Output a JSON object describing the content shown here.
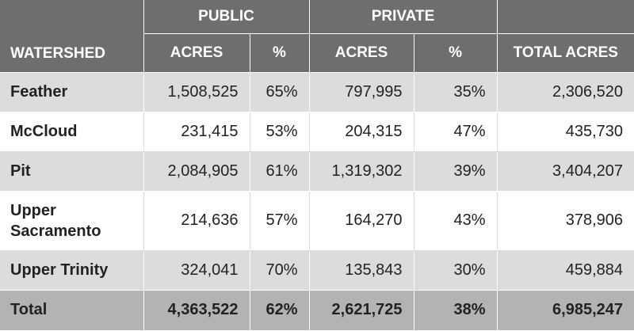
{
  "header": {
    "public_group": "PUBLIC",
    "private_group": "PRIVATE",
    "col_watershed": "WATERSHED",
    "col_public_acres": "ACRES",
    "col_public_pct": "%",
    "col_private_acres": "ACRES",
    "col_private_pct": "%",
    "col_total_acres": "TOTAL ACRES"
  },
  "rows": [
    {
      "name": "Feather",
      "public_acres": "1,508,525",
      "public_pct": "65%",
      "private_acres": "797,995",
      "private_pct": "35%",
      "total_acres": "2,306,520"
    },
    {
      "name": "McCloud",
      "public_acres": "231,415",
      "public_pct": "53%",
      "private_acres": "204,315",
      "private_pct": "47%",
      "total_acres": "435,730"
    },
    {
      "name": "Pit",
      "public_acres": "2,084,905",
      "public_pct": "61%",
      "private_acres": "1,319,302",
      "private_pct": "39%",
      "total_acres": "3,404,207"
    },
    {
      "name": "Upper Sacramento",
      "public_acres": "214,636",
      "public_pct": "57%",
      "private_acres": "164,270",
      "private_pct": "43%",
      "total_acres": "378,906"
    },
    {
      "name": "Upper Trinity",
      "public_acres": "324,041",
      "public_pct": "70%",
      "private_acres": "135,843",
      "private_pct": "30%",
      "total_acres": "459,884"
    }
  ],
  "total": {
    "name": "Total",
    "public_acres": "4,363,522",
    "public_pct": "62%",
    "private_acres": "2,621,725",
    "private_pct": "38%",
    "total_acres": "6,985,247"
  },
  "colors": {
    "header_bg": "#6d6e70",
    "stripe_bg": "#dcdcdd",
    "total_bg": "#b2b3b5"
  }
}
